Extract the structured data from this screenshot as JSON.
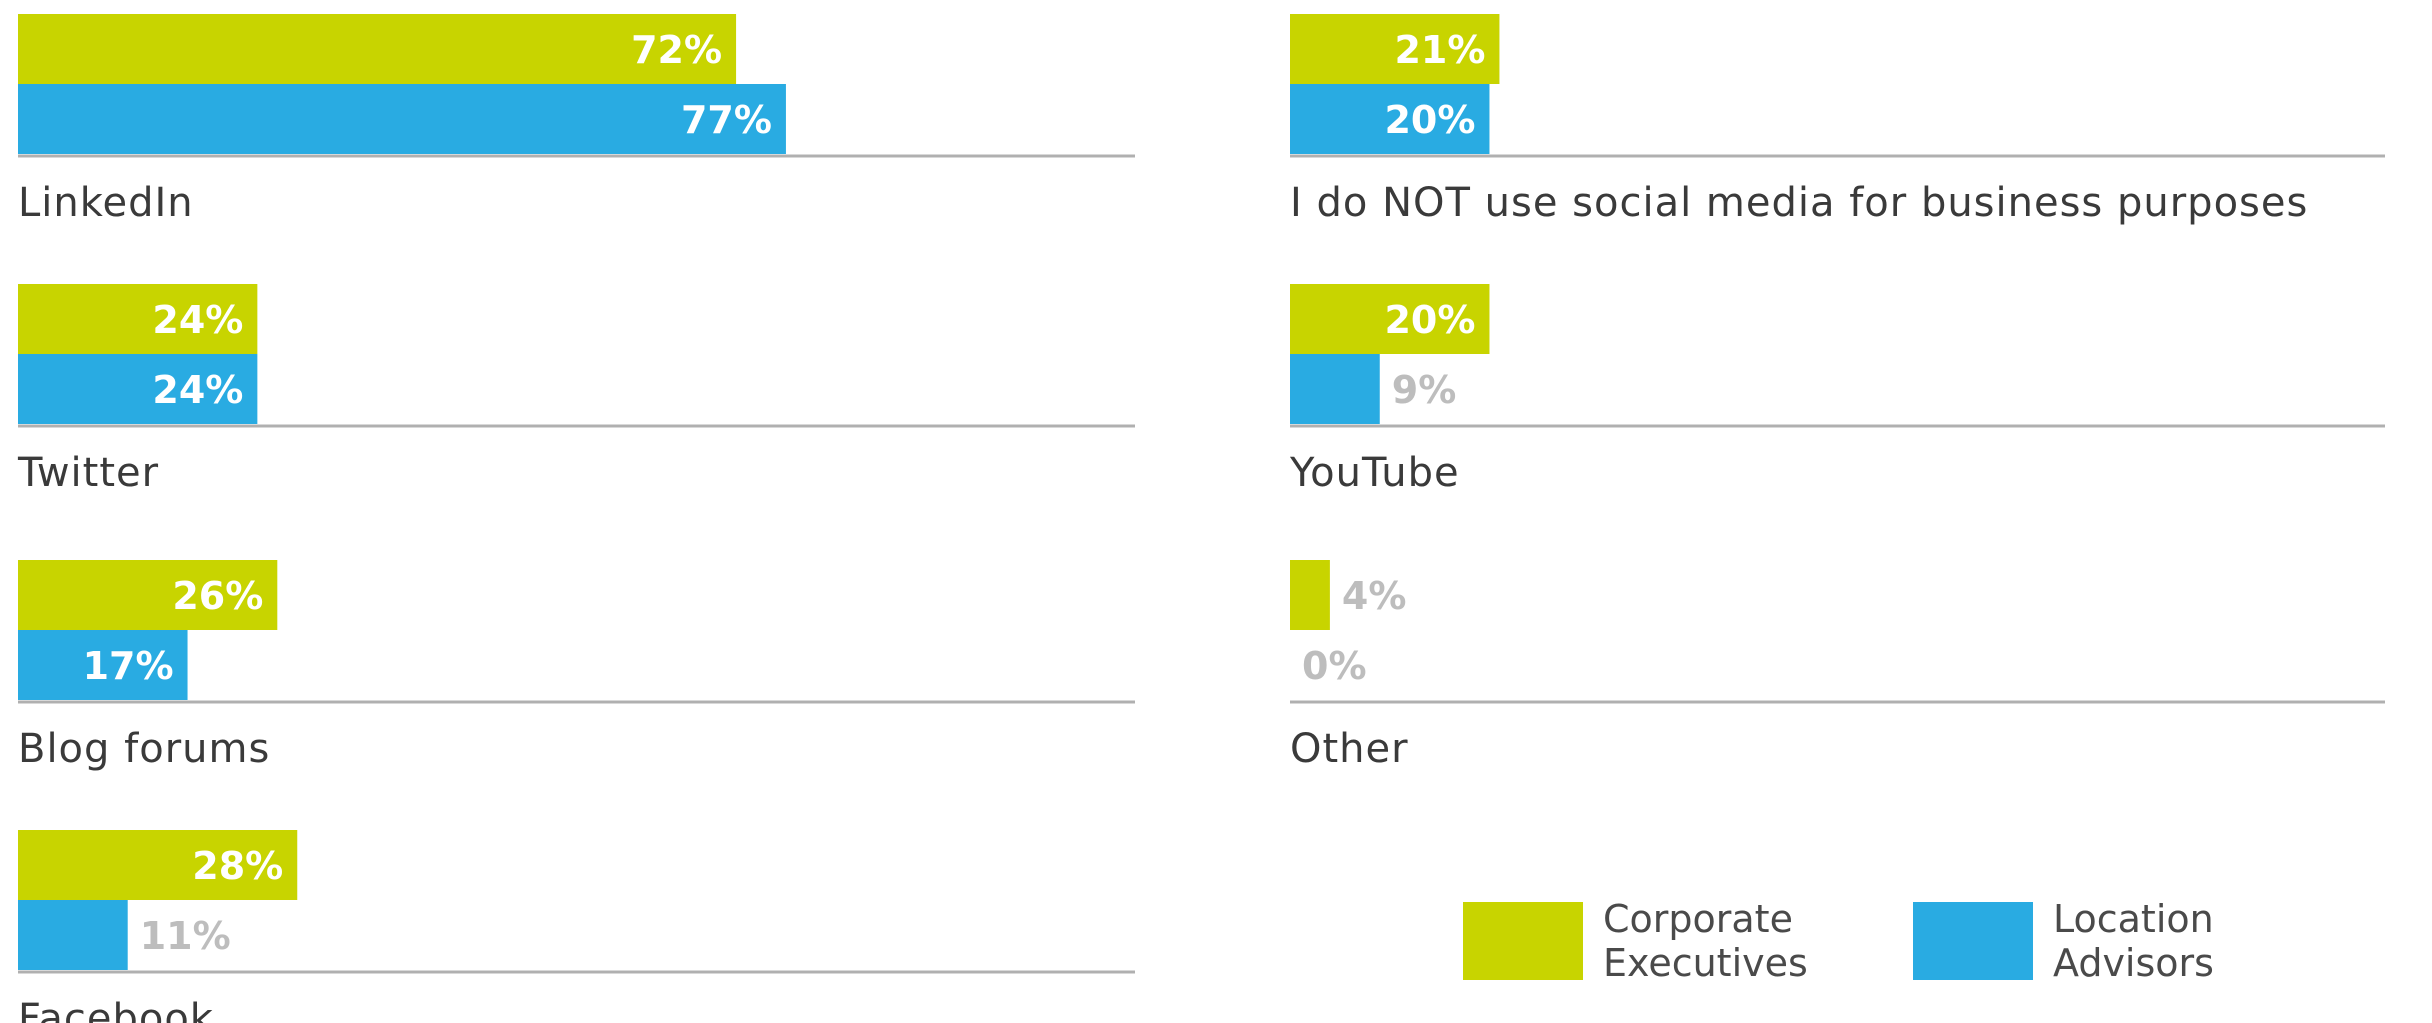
{
  "chart_data": {
    "type": "bar",
    "orientation": "horizontal",
    "value_unit": "%",
    "xlim": [
      0,
      100
    ],
    "grid": false,
    "legend_position": "bottom-right",
    "colors": {
      "Corporate Executives": "#c8d400",
      "Location Advisors": "#29abe2",
      "outside_label": "#bdbdbd",
      "baseline": "#b0b0b0"
    },
    "categories": [
      "LinkedIn",
      "Twitter",
      "Blog forums",
      "Facebook",
      "I do NOT use social media for business purposes",
      "YouTube",
      "Other"
    ],
    "series": [
      {
        "name": "Corporate Executives",
        "values": [
          72,
          24,
          26,
          28,
          21,
          20,
          4
        ],
        "labels": [
          "72%",
          "24%",
          "26%",
          "28%",
          "21%",
          "20%",
          "4%"
        ]
      },
      {
        "name": "Location Advisors",
        "values": [
          77,
          24,
          17,
          11,
          20,
          9,
          0
        ],
        "labels": [
          "77%",
          "24%",
          "17%",
          "11%",
          "20%",
          "9%",
          "0%"
        ]
      }
    ],
    "legend": [
      {
        "line1": "Corporate",
        "line2": "Executives"
      },
      {
        "line1": "Location",
        "line2": "Advisors"
      }
    ]
  }
}
